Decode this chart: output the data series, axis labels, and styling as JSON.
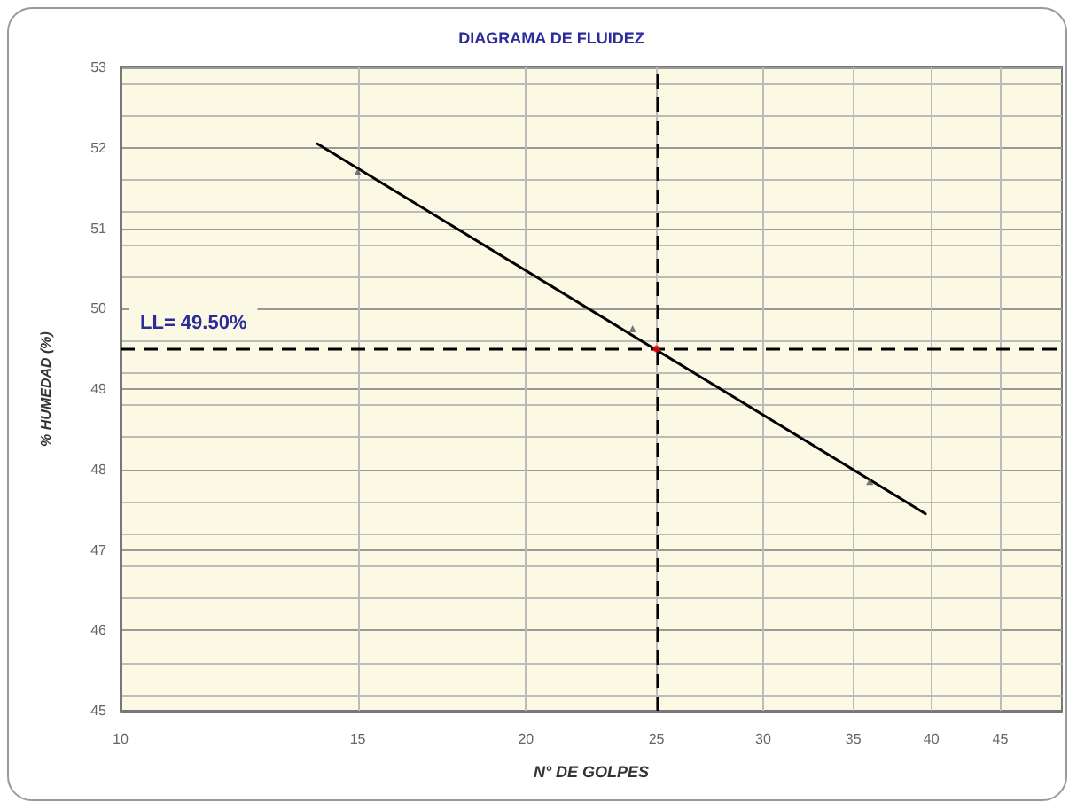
{
  "chart_data": {
    "type": "scatter",
    "title": "DIAGRAMA DE FLUIDEZ",
    "xlabel": "N° DE GOLPES",
    "ylabel": "% HUMEDAD (%)",
    "log": "x",
    "xlim": [
      10,
      50
    ],
    "xticks": [
      10,
      15,
      20,
      25,
      30,
      35,
      40,
      45
    ],
    "ylim": [
      45,
      53
    ],
    "yticks": [
      45,
      46,
      47,
      48,
      49,
      50,
      51,
      52,
      53
    ],
    "grid": true,
    "series": [
      {
        "type": "line",
        "color": "#000000",
        "x": [
          14,
          39.6
        ],
        "values": [
          52.05,
          47.45
        ],
        "marker": "none",
        "line_style": "solid"
      },
      {
        "color": "#555555",
        "x": [
          15,
          24,
          36
        ],
        "values": [
          51.7,
          49.75,
          47.85
        ],
        "marker": "triangle"
      },
      {
        "color": "#ff0000",
        "x": [
          25
        ],
        "values": [
          49.5
        ],
        "marker": "circle"
      }
    ],
    "ref_lines": [
      {
        "axis": "x",
        "value": 25,
        "label": null,
        "color": "#000000",
        "line_style": "dashed"
      },
      {
        "axis": "y",
        "value": 49.5,
        "label": "LL= 49.50%",
        "color": "#000000",
        "line_style": "dashed"
      }
    ]
  }
}
